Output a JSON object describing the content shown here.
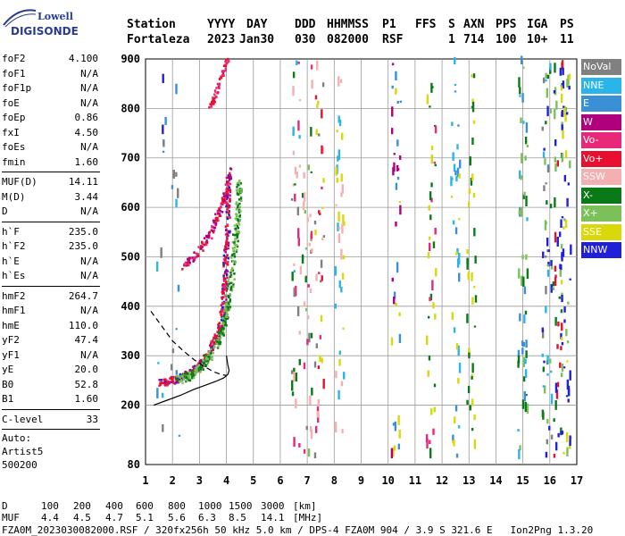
{
  "logo": {
    "top": "Lowell",
    "bottom": "DIGISONDE"
  },
  "header": {
    "line1": [
      "Station",
      "YYYY",
      "DAY",
      "DDD",
      "HHMMSS",
      "P1",
      "FFS",
      "S",
      "AXN",
      "PPS",
      "IGA",
      "PS"
    ],
    "line2": [
      "Fortaleza",
      "2023",
      "Jan30",
      "030",
      "082000",
      "RSF",
      "1",
      "714",
      "100",
      "10+",
      "11"
    ]
  },
  "params": [
    {
      "name": "foF2",
      "value": "4.100"
    },
    {
      "name": "foF1",
      "value": "N/A"
    },
    {
      "name": "foF1p",
      "value": "N/A"
    },
    {
      "name": "foE",
      "value": "N/A"
    },
    {
      "name": "foEp",
      "value": "0.86"
    },
    {
      "name": "fxI",
      "value": "4.50"
    },
    {
      "name": "foEs",
      "value": "N/A"
    },
    {
      "name": "fmin",
      "value": "1.60"
    },
    {
      "sep": true
    },
    {
      "name": "MUF(D)",
      "value": "14.11"
    },
    {
      "name": "M(D)",
      "value": "3.44"
    },
    {
      "name": "D",
      "value": "N/A"
    },
    {
      "sep": true
    },
    {
      "name": "h`F",
      "value": "235.0"
    },
    {
      "name": "h`F2",
      "value": "235.0"
    },
    {
      "name": "h`E",
      "value": "N/A"
    },
    {
      "name": "h`Es",
      "value": "N/A"
    },
    {
      "sep": true
    },
    {
      "name": "hmF2",
      "value": "264.7"
    },
    {
      "name": "hmF1",
      "value": "N/A"
    },
    {
      "name": "hmE",
      "value": "110.0"
    },
    {
      "name": "yF2",
      "value": "47.4"
    },
    {
      "name": "yF1",
      "value": "N/A"
    },
    {
      "name": "yE",
      "value": "20.0"
    },
    {
      "name": "B0",
      "value": "52.8"
    },
    {
      "name": "B1",
      "value": "1.60"
    },
    {
      "sep": true
    },
    {
      "name": "C-level",
      "value": "33"
    },
    {
      "sep": true
    }
  ],
  "auto": {
    "line1": "Auto:",
    "line2": "Artist5",
    "line3": "500200"
  },
  "legend": [
    {
      "label": "NoVal",
      "color": "#808080"
    },
    {
      "label": "NNE",
      "color": "#2ab5ea"
    },
    {
      "label": "E",
      "color": "#3b8fd4"
    },
    {
      "label": "W",
      "color": "#b0007e"
    },
    {
      "label": "Vo-",
      "color": "#e8297a"
    },
    {
      "label": "Vo+",
      "color": "#e8102e"
    },
    {
      "label": "SSW",
      "color": "#f4b0b0"
    },
    {
      "label": "X-",
      "color": "#0a7a18"
    },
    {
      "label": "X+",
      "color": "#7cc05a"
    },
    {
      "label": "SSE",
      "color": "#d8d80a"
    },
    {
      "label": "NNW",
      "color": "#2020d8"
    }
  ],
  "chart_data": {
    "type": "scatter",
    "xlim": [
      1,
      17
    ],
    "ylim": [
      80,
      900
    ],
    "x_ticks": [
      1,
      2,
      3,
      4,
      5,
      6,
      7,
      8,
      9,
      10,
      11,
      12,
      13,
      14,
      15,
      16,
      17
    ],
    "y_ticks": [
      80,
      200,
      300,
      400,
      500,
      600,
      700,
      800,
      900
    ],
    "grid": true,
    "profile_solid": {
      "x": [
        1.3,
        1.8,
        2.3,
        2.8,
        3.2,
        3.6,
        3.9,
        4.05,
        4.1,
        4.05,
        4.0
      ],
      "y": [
        200,
        210,
        220,
        232,
        240,
        248,
        255,
        262,
        270,
        282,
        300
      ]
    },
    "profile_dashed": {
      "x": [
        1.2,
        1.6,
        2.0,
        2.4,
        2.8,
        3.2,
        3.5,
        3.8,
        4.0
      ],
      "y": [
        390,
        360,
        330,
        310,
        292,
        278,
        268,
        262,
        260
      ]
    },
    "trace_f2_o": {
      "x": [
        1.55,
        1.8,
        2.2,
        2.6,
        3.0,
        3.3,
        3.6,
        3.8,
        3.9,
        3.95,
        4.0,
        4.05,
        4.08,
        4.1
      ],
      "y": [
        245,
        248,
        252,
        262,
        280,
        300,
        330,
        360,
        400,
        450,
        500,
        560,
        620,
        680
      ]
    },
    "trace_f2_x": {
      "x": [
        2.2,
        2.6,
        3.0,
        3.4,
        3.7,
        3.95,
        4.1,
        4.25,
        4.35,
        4.45,
        4.5
      ],
      "y": [
        250,
        258,
        275,
        300,
        330,
        370,
        420,
        480,
        540,
        600,
        660
      ]
    },
    "trace_f2_2hop": {
      "x": [
        2.4,
        2.8,
        3.1,
        3.4,
        3.6,
        3.8,
        3.95,
        4.05
      ],
      "y": [
        480,
        500,
        520,
        545,
        570,
        600,
        620,
        640
      ]
    },
    "trace_f2_3hop": {
      "x": [
        3.4,
        3.6,
        3.8,
        3.95,
        4.05
      ],
      "y": [
        800,
        830,
        860,
        880,
        900
      ]
    }
  },
  "footer": {
    "line1_label": "D",
    "d_values": [
      "100",
      "200",
      "400",
      "600",
      "800",
      "1000",
      "1500",
      "3000"
    ],
    "d_unit": "[km]",
    "line2_label": "MUF",
    "muf_values": [
      "4.4",
      "4.5",
      "4.7",
      "5.1",
      "5.6",
      "6.3",
      "8.5",
      "14.1"
    ],
    "muf_unit": "[MHz]",
    "line3": "FZA0M_2023030082000.RSF / 320fx256h 50 kHz 5.0 km / DPS-4 FZA0M 904 / 3.9 S 321.6 E   Ion2Png 1.3.20"
  }
}
